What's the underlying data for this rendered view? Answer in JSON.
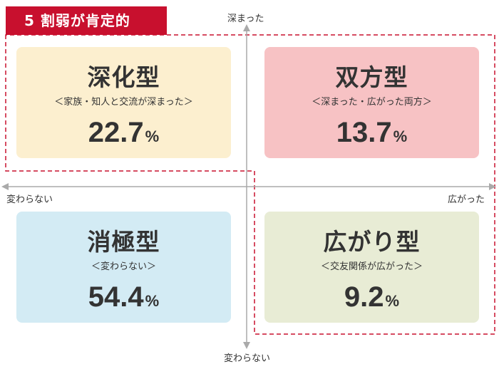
{
  "banner": {
    "label": "5 割弱が肯定的"
  },
  "axes": {
    "top": "深まった",
    "bottom": "変わらない",
    "left": "変わらない",
    "right": "広がった"
  },
  "chart_data": {
    "type": "table",
    "unit": "%",
    "quadrants": [
      {
        "name": "深化型",
        "description": "＜家族・知人と交流が深まった＞",
        "value": "22.7",
        "color": "#fcefcf"
      },
      {
        "name": "双方型",
        "description": "＜深まった・広がった両方＞",
        "value": "13.7",
        "color": "#f7c2c4"
      },
      {
        "name": "消極型",
        "description": "＜変わらない＞",
        "value": "54.4",
        "color": "#d3ebf4"
      },
      {
        "name": "広がり型",
        "description": "＜交友関係が広がった＞",
        "value": "9.2",
        "color": "#e8ecd5"
      }
    ]
  }
}
